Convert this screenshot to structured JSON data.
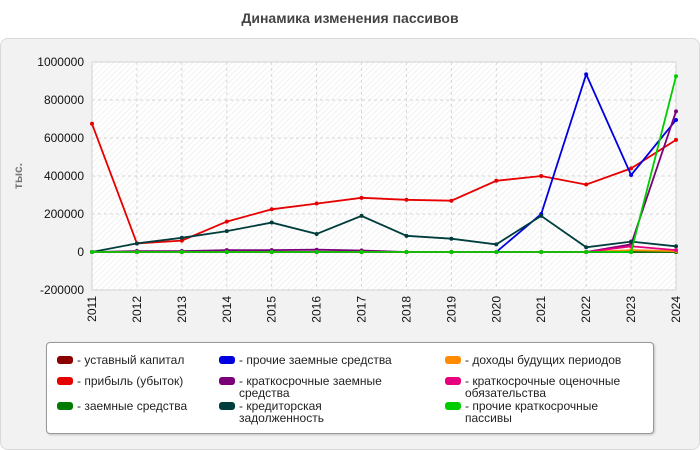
{
  "chart_data": {
    "type": "line",
    "title": "Динамика изменения пассивов",
    "ylabel": "тыс.",
    "xlabel": "",
    "ylim": [
      -200000,
      1000000
    ],
    "yticks": [
      -200000,
      0,
      200000,
      400000,
      600000,
      800000,
      1000000
    ],
    "ytick_labels": [
      "-200000",
      "0",
      "200000",
      "400000",
      "600000",
      "800000",
      "1000000"
    ],
    "x": [
      "2011",
      "2012",
      "2013",
      "2014",
      "2015",
      "2016",
      "2017",
      "2018",
      "2019",
      "2020",
      "2021",
      "2022",
      "2023",
      "2024"
    ],
    "grid": true,
    "legend_position": "bottom",
    "series": [
      {
        "name": "- уставный капитал",
        "color": "#8b0000",
        "values": [
          0,
          0,
          0,
          0,
          0,
          0,
          0,
          0,
          0,
          0,
          0,
          0,
          0,
          0
        ]
      },
      {
        "name": "- прибыль (убыток)",
        "color": "#e60000",
        "values": [
          675000,
          45000,
          60000,
          160000,
          225000,
          255000,
          285000,
          275000,
          270000,
          375000,
          400000,
          355000,
          440000,
          590000
        ]
      },
      {
        "name": "- заемные средства",
        "color": "#007a00",
        "values": [
          0,
          0,
          0,
          0,
          0,
          0,
          0,
          0,
          0,
          0,
          0,
          0,
          0,
          0
        ]
      },
      {
        "name": "- прочие заемные средства",
        "color": "#0000e0",
        "values": [
          0,
          0,
          0,
          0,
          0,
          0,
          0,
          0,
          0,
          0,
          200000,
          935000,
          405000,
          695000
        ]
      },
      {
        "name": "- краткосрочные заемные средства",
        "color": "#7a007a",
        "values": [
          0,
          5000,
          5000,
          10000,
          10000,
          12000,
          8000,
          0,
          0,
          0,
          0,
          0,
          40000,
          740000
        ]
      },
      {
        "name": "- кредиторская задолженность",
        "color": "#003d3d",
        "values": [
          0,
          45000,
          75000,
          110000,
          155000,
          95000,
          190000,
          85000,
          70000,
          40000,
          190000,
          25000,
          55000,
          30000
        ]
      },
      {
        "name": "- доходы будущих периодов",
        "color": "#ff8c00",
        "values": [
          0,
          0,
          0,
          0,
          0,
          0,
          0,
          0,
          0,
          0,
          0,
          0,
          10000,
          5000
        ]
      },
      {
        "name": "- краткосрочные оценочные обязательства",
        "color": "#e6007e",
        "values": [
          0,
          0,
          0,
          0,
          0,
          0,
          0,
          0,
          0,
          0,
          0,
          0,
          30000,
          10000
        ]
      },
      {
        "name": "- прочие краткосрочные пассивы",
        "color": "#00cc00",
        "values": [
          0,
          0,
          0,
          0,
          0,
          0,
          0,
          0,
          0,
          0,
          0,
          0,
          0,
          925000
        ]
      }
    ]
  }
}
